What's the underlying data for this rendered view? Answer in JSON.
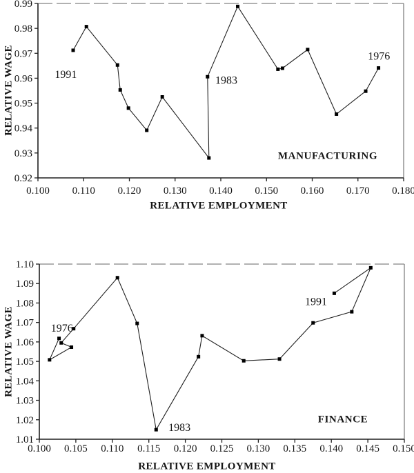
{
  "figure": {
    "background": "#ffffff",
    "ink_color": "#1f1f1f",
    "marker_color": "#000000",
    "frame_gray": "#979797"
  },
  "chart_data": [
    {
      "type": "line",
      "panel_label": "MANUFACTURING",
      "xlabel": "RELATIVE EMPLOYMENT",
      "ylabel": "RELATIVE WAGE",
      "xlim": [
        0.1,
        0.18
      ],
      "ylim": [
        0.92,
        0.99
      ],
      "grid": false,
      "legend": false,
      "marker": "square",
      "path_order": "1976 to 1991",
      "xticks": [
        {
          "v": 0.1,
          "label": "0.100"
        },
        {
          "v": 0.11,
          "label": "0.110"
        },
        {
          "v": 0.12,
          "label": "0.120"
        },
        {
          "v": 0.13,
          "label": "0.130"
        },
        {
          "v": 0.14,
          "label": "0.140"
        },
        {
          "v": 0.15,
          "label": "0.150"
        },
        {
          "v": 0.16,
          "label": "0.160"
        },
        {
          "v": 0.17,
          "label": "0.170"
        },
        {
          "v": 0.18,
          "label": "0.180"
        }
      ],
      "yticks": [
        {
          "v": 0.92,
          "label": "0.92"
        },
        {
          "v": 0.93,
          "label": "0.93"
        },
        {
          "v": 0.94,
          "label": "0.94"
        },
        {
          "v": 0.95,
          "label": "0.95"
        },
        {
          "v": 0.96,
          "label": "0.96"
        },
        {
          "v": 0.97,
          "label": "0.97"
        },
        {
          "v": 0.98,
          "label": "0.98"
        },
        {
          "v": 0.99,
          "label": "0.99"
        }
      ],
      "points": [
        [
          0.1745,
          0.9641
        ],
        [
          0.1717,
          0.9548
        ],
        [
          0.1653,
          0.9456
        ],
        [
          0.159,
          0.9715
        ],
        [
          0.1535,
          0.964
        ],
        [
          0.1525,
          0.9636
        ],
        [
          0.1437,
          0.9888
        ],
        [
          0.1371,
          0.9606
        ],
        [
          0.1374,
          0.928
        ],
        [
          0.1272,
          0.9525
        ],
        [
          0.1238,
          0.9391
        ],
        [
          0.1198,
          0.948
        ],
        [
          0.118,
          0.9553
        ],
        [
          0.1174,
          0.9653
        ],
        [
          0.1106,
          0.9807
        ],
        [
          0.1077,
          0.9712
        ]
      ],
      "annotations": [
        {
          "text": "1976",
          "x": 0.1746,
          "y": 0.9689
        },
        {
          "text": "1983",
          "x": 0.1412,
          "y": 0.9592
        },
        {
          "text": "1991",
          "x": 0.1061,
          "y": 0.9615
        }
      ]
    },
    {
      "type": "line",
      "panel_label": "FINANCE",
      "xlabel": "RELATIVE EMPLOYMENT",
      "ylabel": "RELATIVE WAGE",
      "xlim": [
        0.1,
        0.15
      ],
      "ylim": [
        1.01,
        1.1
      ],
      "grid": false,
      "legend": false,
      "marker": "square",
      "path_order": "1976 to 1991",
      "xticks": [
        {
          "v": 0.1,
          "label": "0.100"
        },
        {
          "v": 0.105,
          "label": "0.105"
        },
        {
          "v": 0.11,
          "label": "0.110"
        },
        {
          "v": 0.115,
          "label": "0.115"
        },
        {
          "v": 0.12,
          "label": "0.120"
        },
        {
          "v": 0.125,
          "label": "0.125"
        },
        {
          "v": 0.13,
          "label": "0.130"
        },
        {
          "v": 0.135,
          "label": "0.135"
        },
        {
          "v": 0.14,
          "label": "0.140"
        },
        {
          "v": 0.145,
          "label": "0.145"
        },
        {
          "v": 0.15,
          "label": "0.150"
        }
      ],
      "yticks": [
        {
          "v": 1.01,
          "label": "1.01"
        },
        {
          "v": 1.02,
          "label": "1.02"
        },
        {
          "v": 1.03,
          "label": "1.03"
        },
        {
          "v": 1.04,
          "label": "1.04"
        },
        {
          "v": 1.05,
          "label": "1.05"
        },
        {
          "v": 1.06,
          "label": "1.06"
        },
        {
          "v": 1.07,
          "label": "1.07"
        },
        {
          "v": 1.08,
          "label": "1.08"
        },
        {
          "v": 1.09,
          "label": "1.09"
        },
        {
          "v": 1.1,
          "label": "1.10"
        }
      ],
      "points": [
        [
          0.1027,
          1.0618
        ],
        [
          0.1014,
          1.0508
        ],
        [
          0.1044,
          1.0573
        ],
        [
          0.103,
          1.0595
        ],
        [
          0.1047,
          1.0668
        ],
        [
          0.1107,
          1.093
        ],
        [
          0.1134,
          1.0695
        ],
        [
          0.116,
          1.0149
        ],
        [
          0.1218,
          1.0524
        ],
        [
          0.1223,
          1.0632
        ],
        [
          0.128,
          1.0503
        ],
        [
          0.1329,
          1.0512
        ],
        [
          0.1375,
          1.0698
        ],
        [
          0.1428,
          1.0755
        ],
        [
          0.1454,
          1.0981
        ],
        [
          0.1404,
          1.085
        ]
      ],
      "annotations": [
        {
          "text": "1976",
          "x": 0.1031,
          "y": 1.0671
        },
        {
          "text": "1983",
          "x": 0.1192,
          "y": 1.016
        },
        {
          "text": "1991",
          "x": 0.1379,
          "y": 1.0807
        }
      ]
    }
  ]
}
